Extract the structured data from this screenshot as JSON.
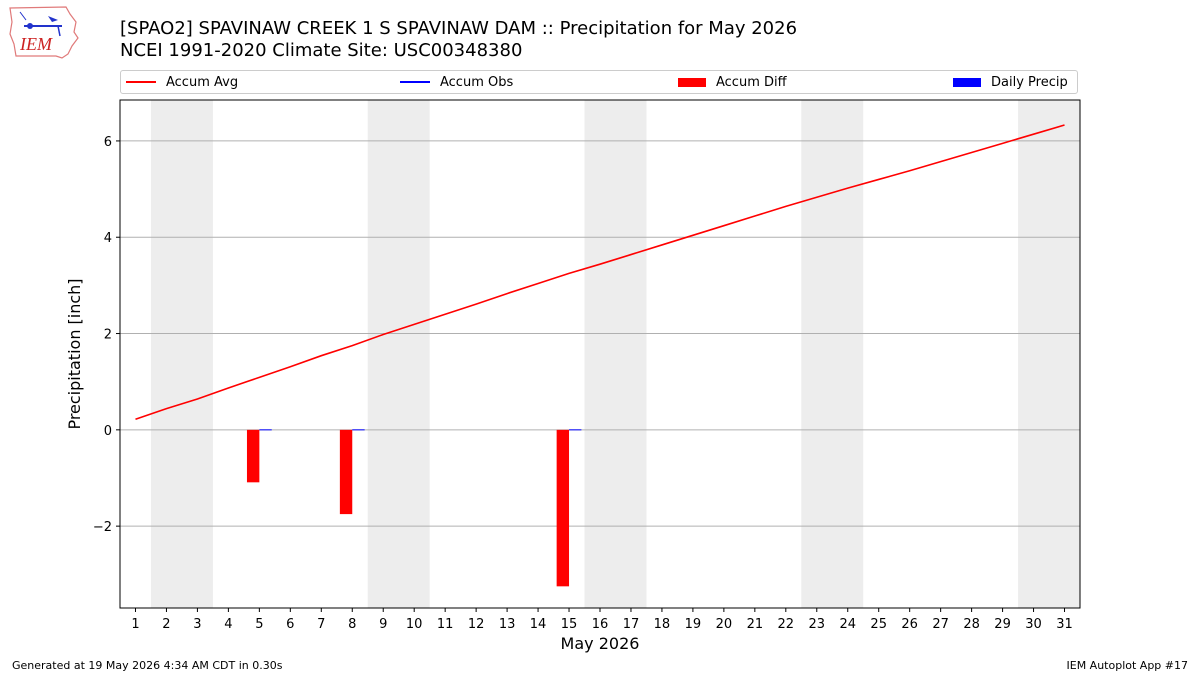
{
  "logo": {
    "text": "IEM"
  },
  "title": {
    "line1": "[SPAO2] SPAVINAW CREEK 1 S SPAVINAW DAM :: Precipitation for May 2026",
    "line2": "NCEI 1991-2020 Climate Site: USC00348380"
  },
  "legend": {
    "items": [
      {
        "label": "Accum Avg",
        "color": "#ff0000",
        "kind": "line"
      },
      {
        "label": "Accum Obs",
        "color": "#0000ff",
        "kind": "line"
      },
      {
        "label": "Accum Diff",
        "color": "#ff0000",
        "kind": "patch"
      },
      {
        "label": "Daily Precip",
        "color": "#0000ff",
        "kind": "patch"
      }
    ]
  },
  "footer": {
    "left": "Generated at 19 May 2026 4:34 AM CDT in 0.30s",
    "right": "IEM Autoplot App #17"
  },
  "chart_data": {
    "type": "bar",
    "xlabel": "May 2026",
    "ylabel": "Precipitation [inch]",
    "x": [
      1,
      2,
      3,
      4,
      5,
      6,
      7,
      8,
      9,
      10,
      11,
      12,
      13,
      14,
      15,
      16,
      17,
      18,
      19,
      20,
      21,
      22,
      23,
      24,
      25,
      26,
      27,
      28,
      29,
      30,
      31
    ],
    "xlim": [
      0.5,
      31.5
    ],
    "ylim": [
      -3.7,
      6.85
    ],
    "yticks": [
      -2,
      0,
      2,
      4,
      6
    ],
    "ytick_labels": [
      "−2",
      "0",
      "2",
      "4",
      "6"
    ],
    "grid": "horizontal",
    "weekend_shading": [
      [
        1.5,
        3.5
      ],
      [
        8.5,
        10.5
      ],
      [
        15.5,
        17.5
      ],
      [
        22.5,
        24.5
      ],
      [
        29.5,
        31.5
      ]
    ],
    "series": [
      {
        "name": "Accum Avg",
        "type": "line",
        "color": "#ff0000",
        "values": [
          0.22,
          0.44,
          0.64,
          0.87,
          1.09,
          1.31,
          1.54,
          1.75,
          1.98,
          2.19,
          2.4,
          2.61,
          2.83,
          3.04,
          3.25,
          3.44,
          3.64,
          3.84,
          4.04,
          4.24,
          4.44,
          4.64,
          4.83,
          5.02,
          5.2,
          5.38,
          5.57,
          5.76,
          5.95,
          6.14,
          6.33
        ]
      },
      {
        "name": "Accum Obs",
        "type": "line",
        "color": "#0000ff",
        "x": [
          5,
          8,
          15
        ],
        "values": [
          0.0,
          0.0,
          0.0
        ]
      },
      {
        "name": "Accum Diff",
        "type": "bar",
        "color": "#ff0000",
        "x": [
          5,
          8,
          15
        ],
        "values": [
          -1.09,
          -1.75,
          -3.25
        ]
      },
      {
        "name": "Daily Precip",
        "type": "bar",
        "color": "#0000ff",
        "x": [
          5,
          8,
          15
        ],
        "values": [
          0.0,
          0.0,
          0.0
        ]
      }
    ]
  }
}
